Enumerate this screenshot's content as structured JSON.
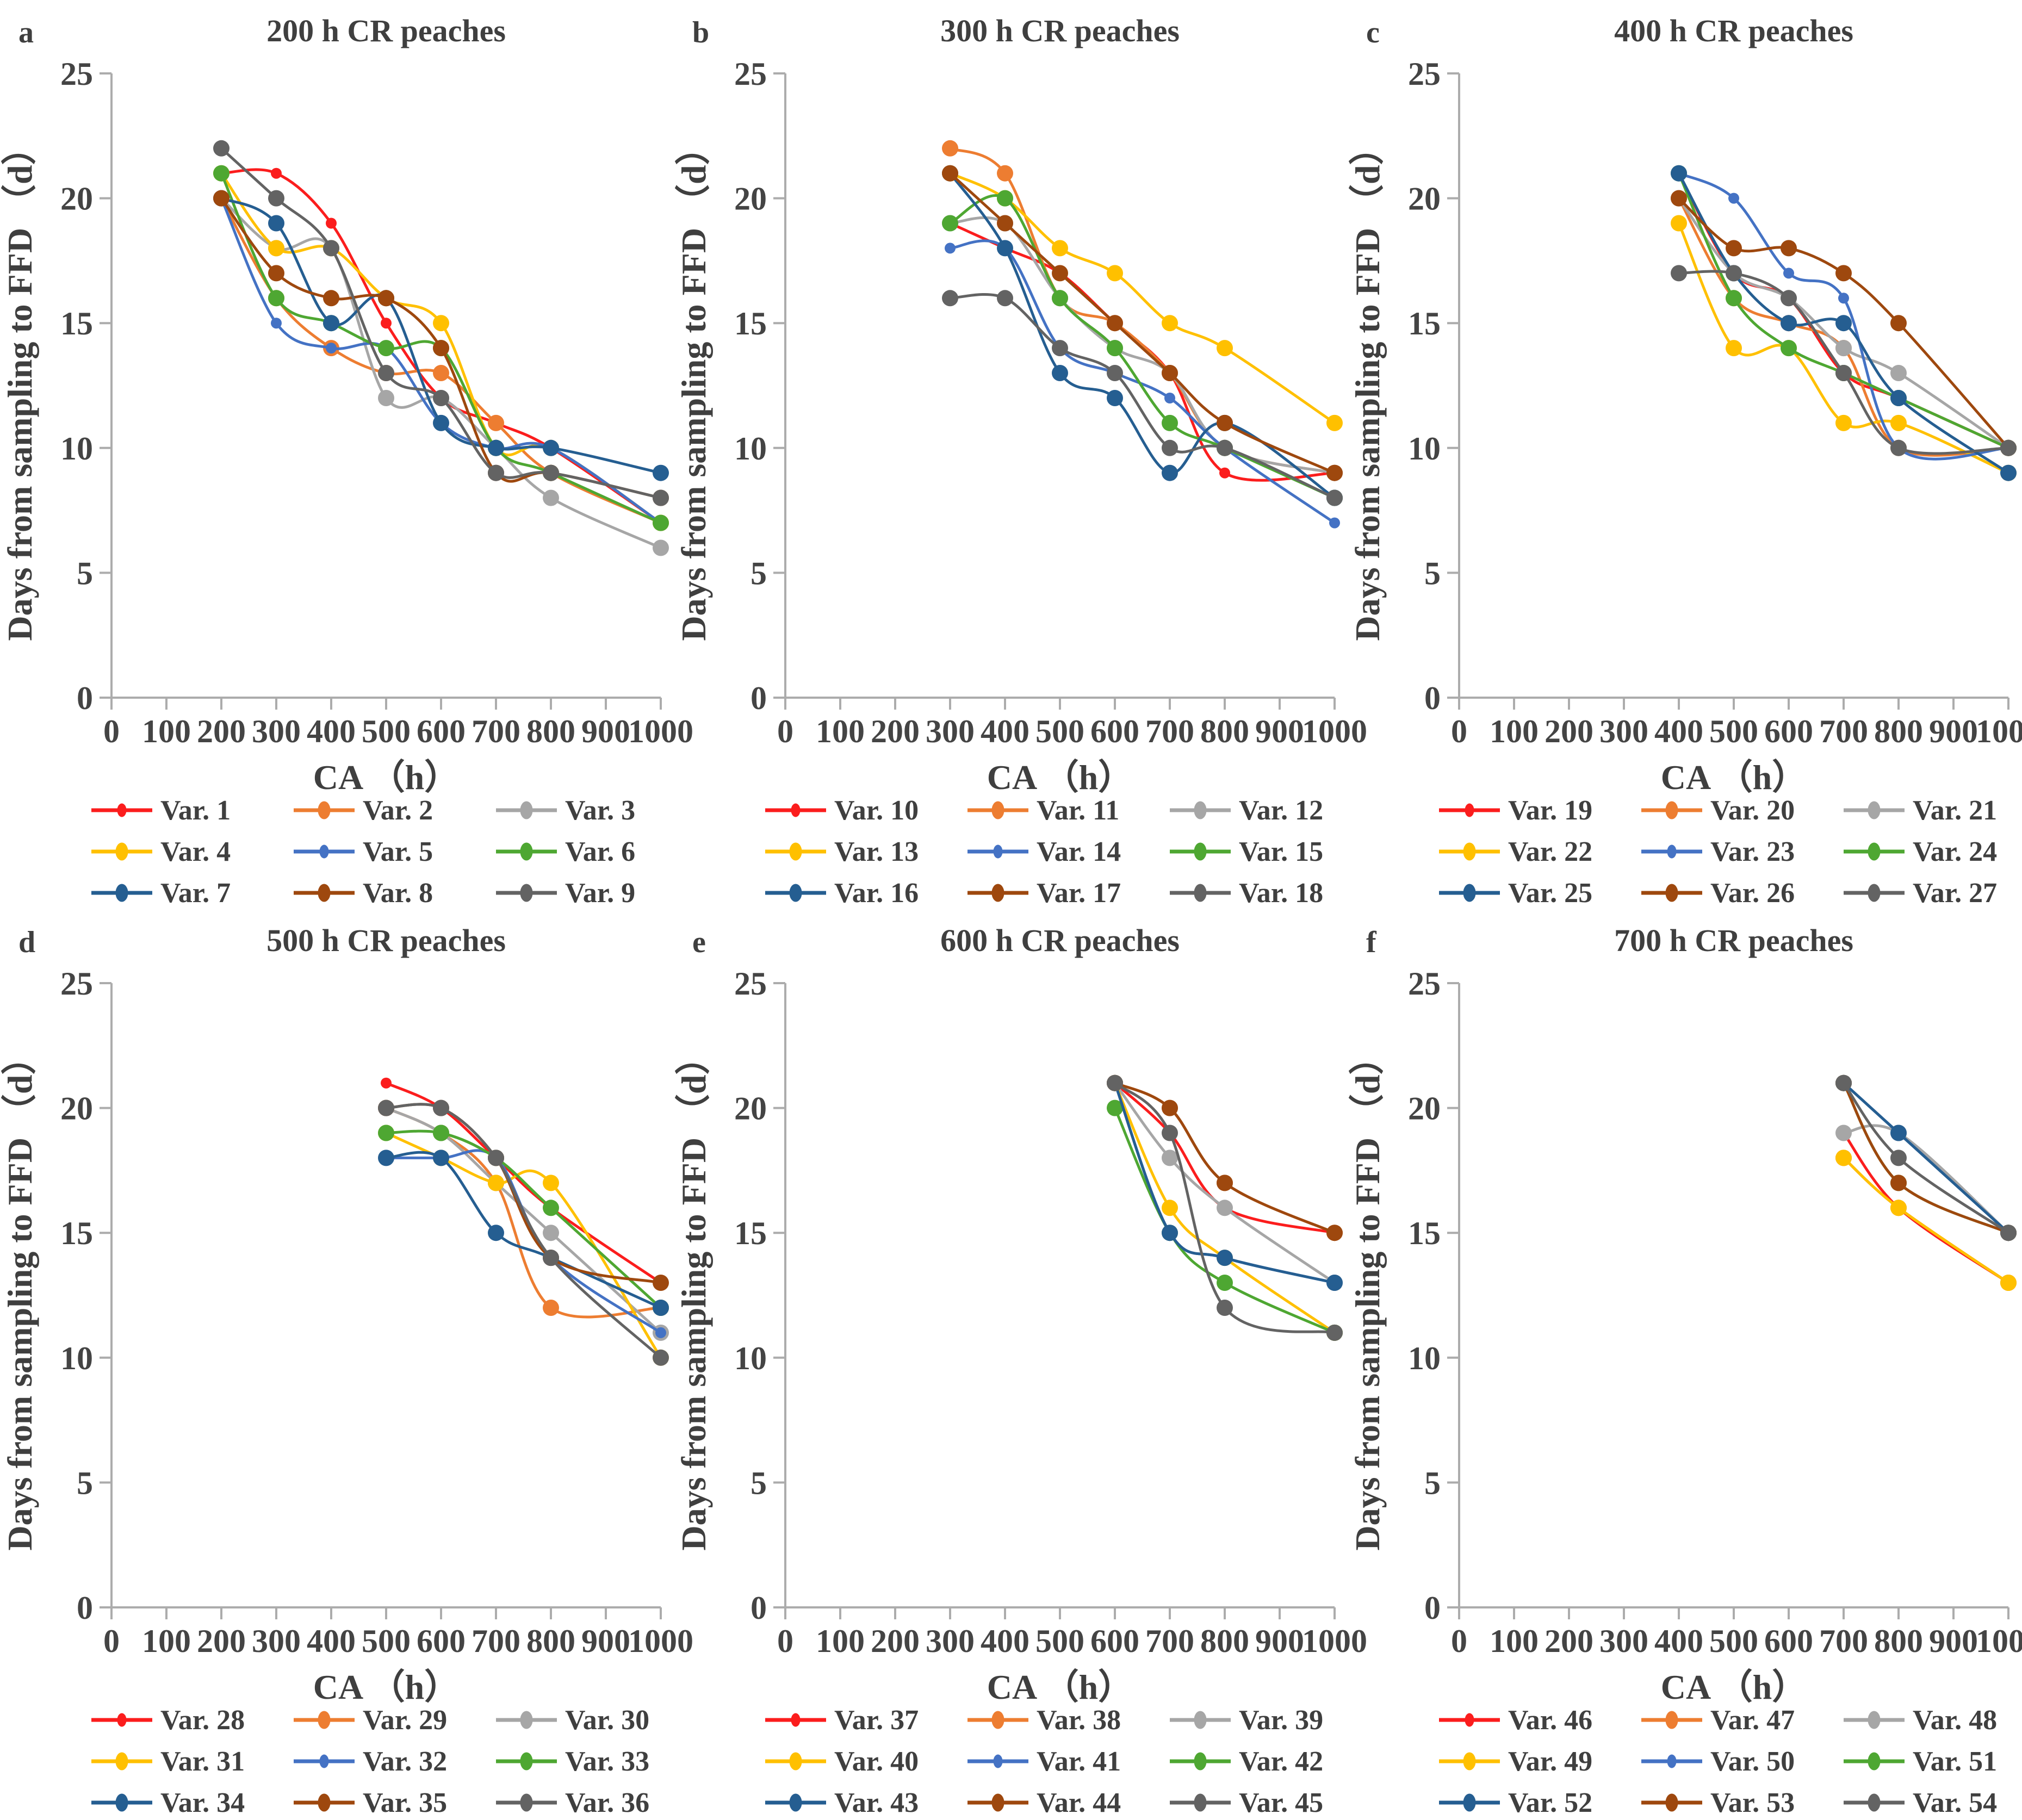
{
  "palette": {
    "red": "#fb1d1d",
    "orange": "#ed7d31",
    "gray": "#a6a6a6",
    "gold": "#ffc000",
    "blue": "#4472c4",
    "green": "#4ea732",
    "dark_blue": "#255e91",
    "brown": "#9e480e",
    "dark_gray": "#636363"
  },
  "axes": {
    "y_label": "Days from sampling to FFD （d）",
    "x_label": "CA （h）",
    "y_ticks": [
      0,
      5,
      10,
      15,
      20,
      25
    ],
    "x_ticks": [
      0,
      100,
      200,
      300,
      400,
      500,
      600,
      700,
      800,
      900,
      1000
    ],
    "ylim": [
      0,
      25
    ],
    "xlim": [
      0,
      1000
    ],
    "grid": false,
    "legend_position": "bottom"
  },
  "chart_data": [
    {
      "type": "line",
      "letter": "a",
      "title": "200 h CR peaches",
      "xlabel": "CA （h）",
      "ylabel": "Days from sampling to FFD （d）",
      "x": [
        200,
        300,
        400,
        500,
        600,
        700,
        800,
        1000
      ],
      "series": [
        {
          "name": "Var. 1",
          "color": "red",
          "values": [
            21,
            21,
            19,
            15,
            12,
            11,
            10,
            7
          ]
        },
        {
          "name": "Var. 2",
          "color": "orange",
          "values": [
            20,
            16,
            14,
            13,
            13,
            11,
            9,
            7
          ]
        },
        {
          "name": "Var. 3",
          "color": "gray",
          "values": [
            20,
            18,
            18,
            12,
            12,
            10,
            8,
            6
          ]
        },
        {
          "name": "Var. 4",
          "color": "gold",
          "values": [
            21,
            18,
            18,
            16,
            15,
            10,
            10,
            7
          ]
        },
        {
          "name": "Var. 5",
          "color": "blue",
          "values": [
            20,
            15,
            14,
            14,
            11,
            10,
            10,
            7
          ]
        },
        {
          "name": "Var. 6",
          "color": "green",
          "values": [
            21,
            16,
            15,
            14,
            14,
            10,
            9,
            7
          ]
        },
        {
          "name": "Var. 7",
          "color": "dark_blue",
          "values": [
            20,
            19,
            15,
            16,
            11,
            10,
            10,
            9
          ]
        },
        {
          "name": "Var. 8",
          "color": "brown",
          "values": [
            20,
            17,
            16,
            16,
            14,
            9,
            9,
            8
          ]
        },
        {
          "name": "Var. 9",
          "color": "dark_gray",
          "values": [
            22,
            20,
            18,
            13,
            12,
            9,
            9,
            8
          ]
        }
      ]
    },
    {
      "type": "line",
      "letter": "b",
      "title": "300 h CR peaches",
      "xlabel": "CA （h）",
      "ylabel": "Days from sampling to FFD （d）",
      "x": [
        300,
        400,
        500,
        600,
        700,
        800,
        1000
      ],
      "series": [
        {
          "name": "Var. 10",
          "color": "red",
          "values": [
            19,
            18,
            17,
            15,
            13,
            9,
            9
          ]
        },
        {
          "name": "Var. 11",
          "color": "orange",
          "values": [
            22,
            21,
            16,
            15,
            13,
            10,
            9
          ]
        },
        {
          "name": "Var. 12",
          "color": "gray",
          "values": [
            19,
            19,
            16,
            14,
            13,
            10,
            9
          ]
        },
        {
          "name": "Var. 13",
          "color": "gold",
          "values": [
            21,
            20,
            18,
            17,
            15,
            14,
            11
          ]
        },
        {
          "name": "Var. 14",
          "color": "blue",
          "values": [
            18,
            18,
            14,
            13,
            12,
            10,
            7
          ]
        },
        {
          "name": "Var. 15",
          "color": "green",
          "values": [
            19,
            20,
            16,
            14,
            11,
            10,
            8
          ]
        },
        {
          "name": "Var. 16",
          "color": "dark_blue",
          "values": [
            21,
            18,
            13,
            12,
            9,
            11,
            8
          ]
        },
        {
          "name": "Var. 17",
          "color": "brown",
          "values": [
            21,
            19,
            17,
            15,
            13,
            11,
            9
          ]
        },
        {
          "name": "Var. 18",
          "color": "dark_gray",
          "values": [
            16,
            16,
            14,
            13,
            10,
            10,
            8
          ]
        }
      ]
    },
    {
      "type": "line",
      "letter": "c",
      "title": "400 h CR peaches",
      "xlabel": "CA （h）",
      "ylabel": "Days from sampling to FFD （d）",
      "x": [
        400,
        500,
        600,
        700,
        800,
        1000
      ],
      "series": [
        {
          "name": "Var. 19",
          "color": "red",
          "values": [
            21,
            17,
            16,
            13,
            12,
            10
          ]
        },
        {
          "name": "Var. 20",
          "color": "orange",
          "values": [
            20,
            16,
            15,
            14,
            10,
            10
          ]
        },
        {
          "name": "Var. 21",
          "color": "gray",
          "values": [
            20,
            17,
            16,
            14,
            13,
            10
          ]
        },
        {
          "name": "Var. 22",
          "color": "gold",
          "values": [
            19,
            14,
            14,
            11,
            11,
            9
          ]
        },
        {
          "name": "Var. 23",
          "color": "blue",
          "values": [
            21,
            20,
            17,
            16,
            10,
            10
          ]
        },
        {
          "name": "Var. 24",
          "color": "green",
          "values": [
            21,
            16,
            14,
            13,
            12,
            10
          ]
        },
        {
          "name": "Var. 25",
          "color": "dark_blue",
          "values": [
            21,
            17,
            15,
            15,
            12,
            9
          ]
        },
        {
          "name": "Var. 26",
          "color": "brown",
          "values": [
            20,
            18,
            18,
            17,
            15,
            10
          ]
        },
        {
          "name": "Var. 27",
          "color": "dark_gray",
          "values": [
            17,
            17,
            16,
            13,
            10,
            10
          ]
        }
      ]
    },
    {
      "type": "line",
      "letter": "d",
      "title": "500 h CR peaches",
      "xlabel": "CA （h）",
      "ylabel": "Days from sampling to FFD （d）",
      "x": [
        500,
        600,
        700,
        800,
        1000
      ],
      "series": [
        {
          "name": "Var. 28",
          "color": "red",
          "values": [
            21,
            20,
            18,
            16,
            13
          ]
        },
        {
          "name": "Var. 29",
          "color": "orange",
          "values": [
            20,
            19,
            17,
            12,
            12
          ]
        },
        {
          "name": "Var. 30",
          "color": "gray",
          "values": [
            20,
            19,
            17,
            15,
            11
          ]
        },
        {
          "name": "Var. 31",
          "color": "gold",
          "values": [
            19,
            18,
            17,
            17,
            10
          ]
        },
        {
          "name": "Var. 32",
          "color": "blue",
          "values": [
            18,
            18,
            18,
            14,
            11
          ]
        },
        {
          "name": "Var. 33",
          "color": "green",
          "values": [
            19,
            19,
            18,
            16,
            12
          ]
        },
        {
          "name": "Var. 34",
          "color": "dark_blue",
          "values": [
            18,
            18,
            15,
            14,
            12
          ]
        },
        {
          "name": "Var. 35",
          "color": "brown",
          "values": [
            20,
            20,
            18,
            14,
            13
          ]
        },
        {
          "name": "Var. 36",
          "color": "dark_gray",
          "values": [
            20,
            20,
            18,
            14,
            10
          ]
        }
      ]
    },
    {
      "type": "line",
      "letter": "e",
      "title": "600 h CR peaches",
      "xlabel": "CA （h）",
      "ylabel": "Days from sampling to FFD （d）",
      "x": [
        600,
        700,
        800,
        1000
      ],
      "series": [
        {
          "name": "Var. 37",
          "color": "red",
          "values": [
            21,
            19,
            16,
            15
          ]
        },
        {
          "name": "Var. 38",
          "color": "orange",
          "values": [
            21,
            20,
            17,
            15
          ]
        },
        {
          "name": "Var. 39",
          "color": "gray",
          "values": [
            21,
            18,
            16,
            13
          ]
        },
        {
          "name": "Var. 40",
          "color": "gold",
          "values": [
            21,
            16,
            14,
            11
          ]
        },
        {
          "name": "Var. 41",
          "color": "blue",
          "values": [
            21,
            15,
            14,
            13
          ]
        },
        {
          "name": "Var. 42",
          "color": "green",
          "values": [
            20,
            15,
            13,
            11
          ]
        },
        {
          "name": "Var. 43",
          "color": "dark_blue",
          "values": [
            21,
            15,
            14,
            13
          ]
        },
        {
          "name": "Var. 44",
          "color": "brown",
          "values": [
            21,
            20,
            17,
            15
          ]
        },
        {
          "name": "Var. 45",
          "color": "dark_gray",
          "values": [
            21,
            19,
            12,
            11
          ]
        }
      ]
    },
    {
      "type": "line",
      "letter": "f",
      "title": "700 h CR peaches",
      "xlabel": "CA （h）",
      "ylabel": "Days from sampling to FFD （d）",
      "x": [
        700,
        800,
        1000
      ],
      "series": [
        {
          "name": "Var. 46",
          "color": "red",
          "values": [
            19,
            16,
            13
          ]
        },
        {
          "name": "Var. 47",
          "color": "orange",
          "values": [
            18,
            16,
            13
          ]
        },
        {
          "name": "Var. 48",
          "color": "gray",
          "values": [
            19,
            19,
            15
          ]
        },
        {
          "name": "Var. 49",
          "color": "gold",
          "values": [
            18,
            16,
            13
          ]
        },
        {
          "name": "Var. 50",
          "color": "blue",
          "values": [
            21,
            19,
            15
          ]
        },
        {
          "name": "Var. 51",
          "color": "green",
          "values": [
            21,
            17,
            15
          ]
        },
        {
          "name": "Var. 52",
          "color": "dark_blue",
          "values": [
            21,
            19,
            15
          ]
        },
        {
          "name": "Var. 53",
          "color": "brown",
          "values": [
            21,
            17,
            15
          ]
        },
        {
          "name": "Var. 54",
          "color": "dark_gray",
          "values": [
            21,
            18,
            15
          ]
        }
      ]
    }
  ]
}
